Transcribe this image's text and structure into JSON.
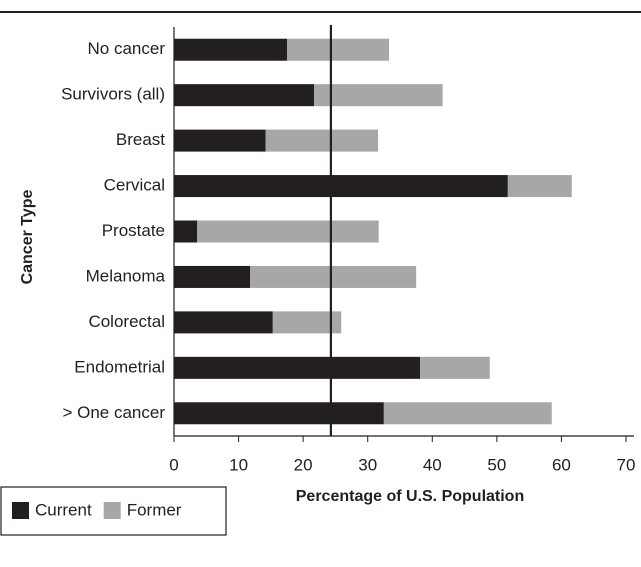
{
  "chart_data": {
    "type": "stacked-bar-horizontal",
    "y_label": "Cancer Type",
    "x_label": "Percentage of U.S. Population",
    "categories": [
      "No cancer",
      "Survivors (all)",
      "Breast",
      "Cervical",
      "Prostate",
      "Melanoma",
      "Colorectal",
      "Endometrial",
      "> One cancer"
    ],
    "series": [
      {
        "name": "Current",
        "color": "#231f20",
        "values": [
          17.5,
          21.7,
          14.2,
          51.7,
          3.6,
          11.8,
          15.3,
          38.1,
          32.5
        ]
      },
      {
        "name": "Former",
        "color": "#a7a7a7",
        "values": [
          15.8,
          19.9,
          17.4,
          9.9,
          28.1,
          25.7,
          10.6,
          10.8,
          26.0
        ]
      }
    ],
    "xlim": [
      0,
      70
    ],
    "xticks": [
      0,
      10,
      20,
      30,
      40,
      50,
      60,
      70
    ],
    "reference_line": 24.3,
    "legend": "bottom-left"
  }
}
